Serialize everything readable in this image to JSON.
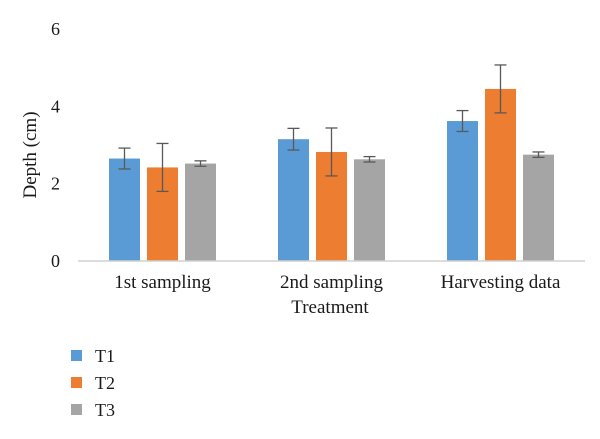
{
  "chart_data": {
    "type": "bar",
    "categories": [
      "1st sampling",
      "2nd sampling",
      "Harvesting data"
    ],
    "series": [
      {
        "name": "T1",
        "color": "#5b9bd5",
        "values": [
          2.65,
          3.15,
          3.62
        ],
        "errors": [
          0.27,
          0.28,
          0.27
        ]
      },
      {
        "name": "T2",
        "color": "#ed7d31",
        "values": [
          2.42,
          2.82,
          4.45
        ],
        "errors": [
          0.62,
          0.62,
          0.62
        ]
      },
      {
        "name": "T3",
        "color": "#a5a5a5",
        "values": [
          2.52,
          2.63,
          2.75
        ],
        "errors": [
          0.07,
          0.07,
          0.07
        ]
      }
    ],
    "xlabel": "Treatment",
    "ylabel": "Depth (cm)",
    "ylim": [
      0,
      6
    ],
    "yticks": [
      "0",
      "2",
      "4",
      "6"
    ],
    "grid": false,
    "legend_position": "bottom-left"
  }
}
